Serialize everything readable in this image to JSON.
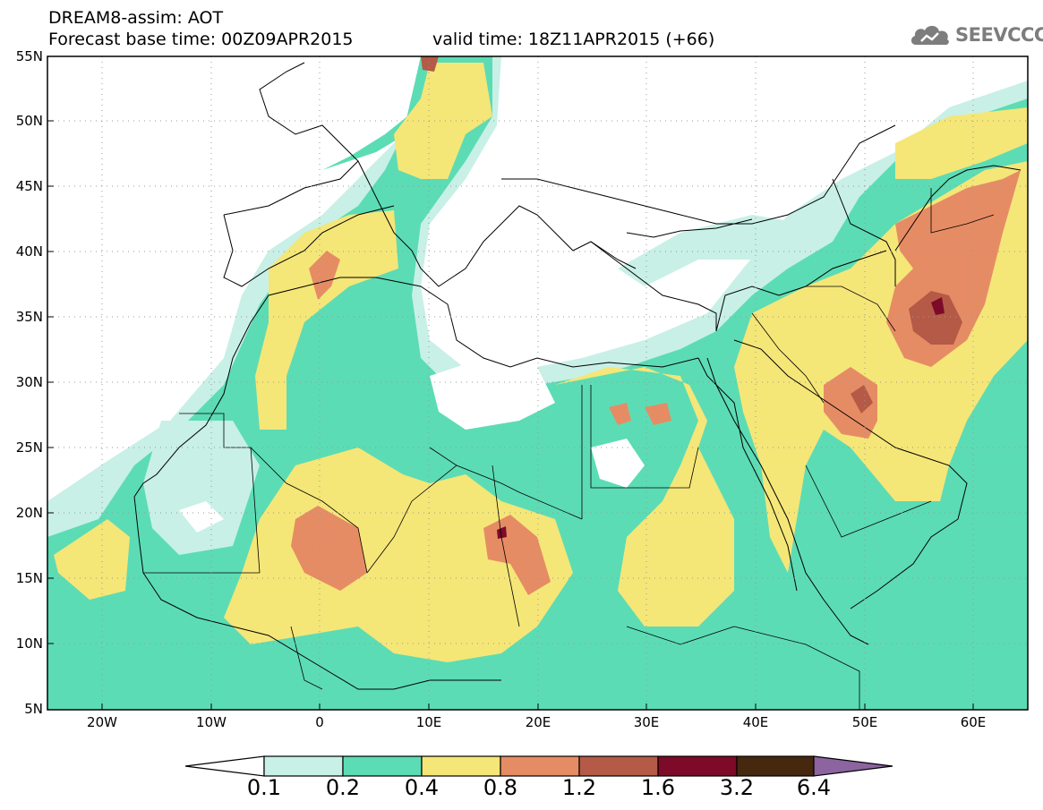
{
  "header": {
    "title": "DREAM8-assim: AOT",
    "base_time": "Forecast base time: 00Z09APR2015",
    "valid_time": "valid time: 18Z11APR2015 (+66)"
  },
  "logo": {
    "text": "SEEVCCC",
    "icon": "cloud-icon"
  },
  "map": {
    "variable": "AOT",
    "lon_range": [
      -25,
      65
    ],
    "lat_range": [
      5,
      55
    ],
    "lat_labels": [
      "55N",
      "50N",
      "45N",
      "40N",
      "35N",
      "30N",
      "25N",
      "20N",
      "15N",
      "10N",
      "5N"
    ],
    "lon_labels": [
      "20W",
      "10W",
      "0",
      "10E",
      "20E",
      "30E",
      "40E",
      "50E",
      "60E"
    ],
    "grid": "dotted"
  },
  "colorbar": {
    "labels": [
      "0.1",
      "0.2",
      "0.4",
      "0.8",
      "1.2",
      "1.6",
      "3.2",
      "6.4"
    ],
    "colors": [
      "#ffffff",
      "#c8f0e6",
      "#5cdcb4",
      "#f5e678",
      "#e68c64",
      "#b45a46",
      "#7d0a28",
      "#46280f",
      "#8c64a0"
    ]
  }
}
